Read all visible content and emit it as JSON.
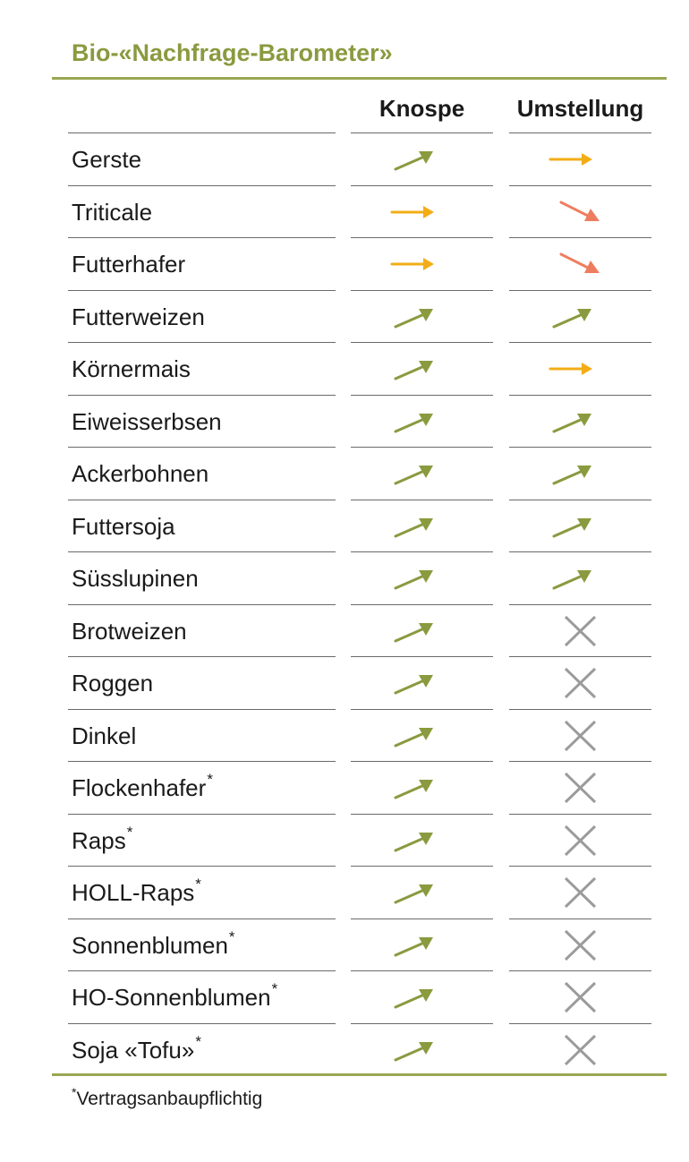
{
  "title": "Bio-«Nachfrage-Barometer»",
  "columns": {
    "knospe": "Knospe",
    "umstellung": "Umstellung"
  },
  "colors": {
    "up": "#8a9a3f",
    "flat": "#f2ad16",
    "down": "#ee7d5f",
    "none": "#9b9b9b",
    "rule": "#9aa752"
  },
  "rows": [
    {
      "name": "Gerste",
      "star": "",
      "knospe": "up",
      "umstellung": "flat"
    },
    {
      "name": "Triticale",
      "star": "",
      "knospe": "flat",
      "umstellung": "down"
    },
    {
      "name": "Futterhafer",
      "star": "",
      "knospe": "flat",
      "umstellung": "down"
    },
    {
      "name": "Futterweizen",
      "star": "",
      "knospe": "up",
      "umstellung": "up"
    },
    {
      "name": "Körnermais",
      "star": "",
      "knospe": "up",
      "umstellung": "flat"
    },
    {
      "name": "Eiweisserbsen",
      "star": "",
      "knospe": "up",
      "umstellung": "up"
    },
    {
      "name": "Ackerbohnen",
      "star": "",
      "knospe": "up",
      "umstellung": "up"
    },
    {
      "name": "Futtersoja",
      "star": "",
      "knospe": "up",
      "umstellung": "up"
    },
    {
      "name": "Süsslupinen",
      "star": "",
      "knospe": "up",
      "umstellung": "up"
    },
    {
      "name": "Brotweizen",
      "star": "",
      "knospe": "up",
      "umstellung": "none"
    },
    {
      "name": "Roggen",
      "star": "",
      "knospe": "up",
      "umstellung": "none"
    },
    {
      "name": "Dinkel",
      "star": "",
      "knospe": "up",
      "umstellung": "none"
    },
    {
      "name": "Flockenhafer",
      "star": "*",
      "knospe": "up",
      "umstellung": "none"
    },
    {
      "name": "Raps",
      "star": "*",
      "knospe": "up",
      "umstellung": "none"
    },
    {
      "name": "HOLL-Raps",
      "star": "*",
      "knospe": "up",
      "umstellung": "none"
    },
    {
      "name": "Sonnenblumen",
      "star": "*",
      "knospe": "up",
      "umstellung": "none"
    },
    {
      "name": "HO-Sonnenblumen",
      "star": "*",
      "knospe": "up",
      "umstellung": "none"
    },
    {
      "name": "Soja «Tofu»",
      "star": "*",
      "knospe": "up",
      "umstellung": "none"
    }
  ],
  "footnote": {
    "star": "*",
    "text": "Vertragsanbaupflichtig"
  }
}
